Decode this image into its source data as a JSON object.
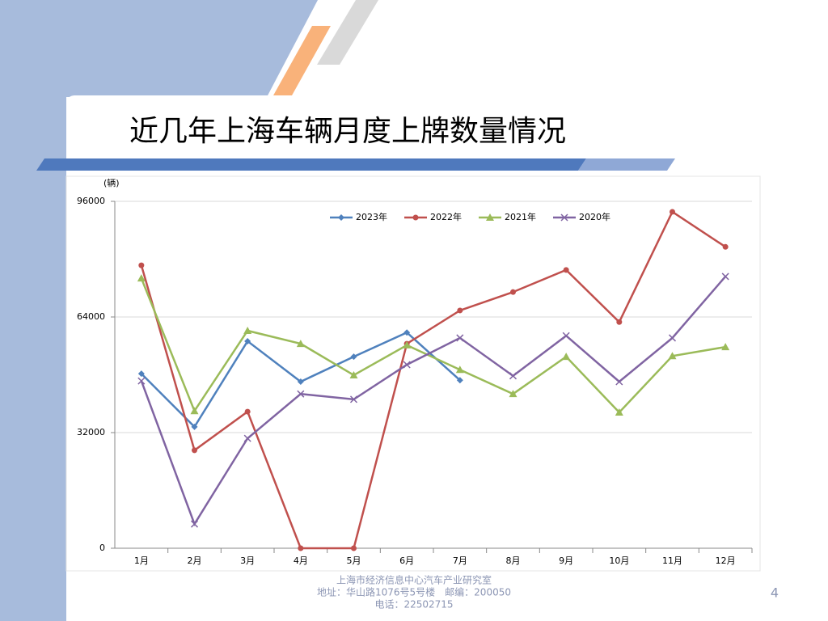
{
  "chart_data": {
    "type": "line",
    "title": "近几年上海车辆月度上牌数量情况",
    "y_label": "(辆)",
    "categories": [
      "1月",
      "2月",
      "3月",
      "4月",
      "5月",
      "6月",
      "7月",
      "8月",
      "9月",
      "10月",
      "11月",
      "12月"
    ],
    "series": [
      {
        "name": "2023年",
        "color": "#4f81bd",
        "marker": "diamond",
        "values": [
          48300,
          33600,
          57300,
          46100,
          53000,
          59700,
          46500,
          null,
          null,
          null,
          null,
          null
        ]
      },
      {
        "name": "2022年",
        "color": "#c0504d",
        "marker": "circle",
        "values": [
          78300,
          27100,
          37800,
          0,
          0,
          56600,
          65800,
          70900,
          77000,
          62600,
          93100,
          83400
        ]
      },
      {
        "name": "2021年",
        "color": "#9bbb59",
        "marker": "triangle",
        "values": [
          74700,
          38000,
          60200,
          56600,
          47900,
          56200,
          49400,
          42700,
          53000,
          37600,
          53200,
          55700
        ]
      },
      {
        "name": "2020年",
        "color": "#8064a2",
        "marker": "x",
        "values": [
          46300,
          6700,
          30400,
          42700,
          41200,
          50800,
          58200,
          47700,
          58800,
          46100,
          58200,
          75200
        ]
      }
    ],
    "ylim": [
      0,
      96000
    ],
    "yticks": [
      0,
      32000,
      64000,
      96000
    ],
    "grid": true,
    "legend": "top"
  },
  "footer": [
    "上海市经济信息中心汽车产业研究室",
    "地址：华山路1076号5号楼　邮编：200050",
    "电话：22502715"
  ],
  "page_number": "4"
}
